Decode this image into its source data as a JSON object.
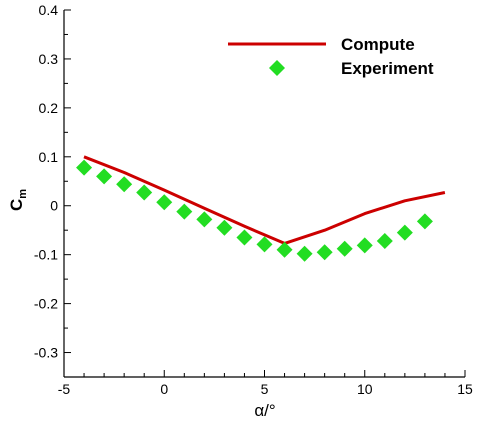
{
  "chart_data": {
    "type": "line",
    "xlabel": "α/°",
    "ylabel": "C",
    "ylabel_subscript": "m",
    "xlim": [
      -5,
      15
    ],
    "ylim": [
      -0.35,
      0.4
    ],
    "x_ticks": [
      -5,
      0,
      5,
      10,
      15
    ],
    "y_ticks": [
      -0.3,
      -0.2,
      -0.1,
      0,
      0.1,
      0.2,
      0.3,
      0.4
    ],
    "grid": false,
    "legend_position": "top-right",
    "series": [
      {
        "name": "Compute",
        "kind": "line",
        "color": "#cc0000",
        "x": [
          -4,
          -2,
          0,
          2,
          4,
          6,
          8,
          10,
          12,
          14
        ],
        "y": [
          0.1,
          0.068,
          0.032,
          -0.005,
          -0.042,
          -0.077,
          -0.05,
          -0.016,
          0.01,
          0.027
        ]
      },
      {
        "name": "Experiment",
        "kind": "scatter",
        "marker": "diamond",
        "color": "#22dd22",
        "x": [
          -4,
          -3,
          -2,
          -1,
          0,
          1,
          2,
          3,
          4,
          5,
          6,
          7,
          8,
          9,
          10,
          11,
          12,
          13
        ],
        "y": [
          0.078,
          0.06,
          0.044,
          0.027,
          0.007,
          -0.012,
          -0.028,
          -0.045,
          -0.065,
          -0.079,
          -0.09,
          -0.098,
          -0.095,
          -0.088,
          -0.081,
          -0.072,
          -0.055,
          -0.032
        ]
      }
    ]
  }
}
